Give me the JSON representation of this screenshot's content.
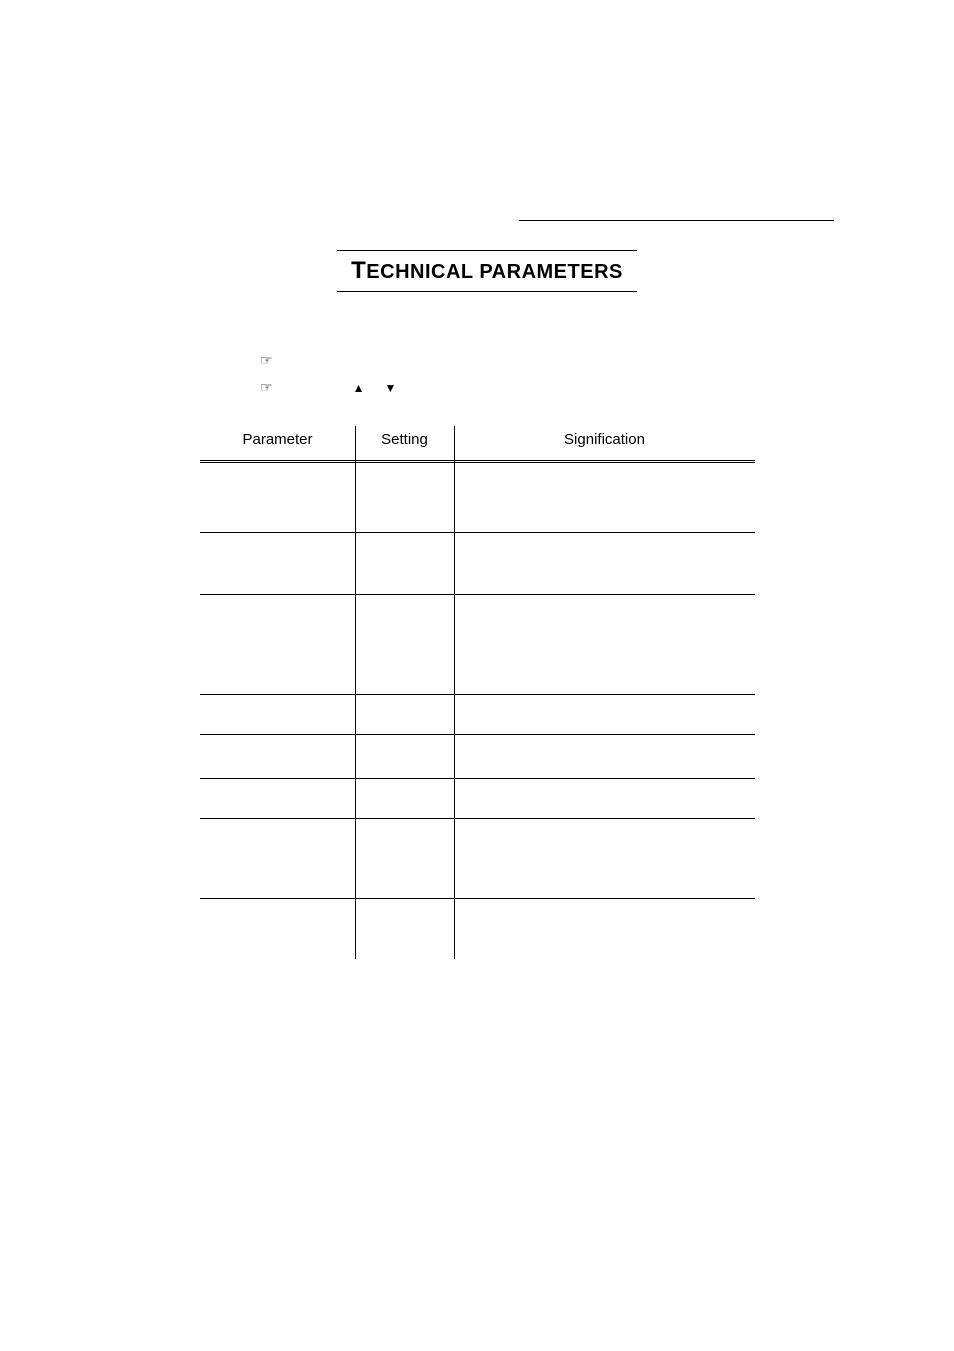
{
  "title": {
    "first_letter": "T",
    "rest": "ECHNICAL PARAMETERS"
  },
  "table": {
    "headers": {
      "parameter": "Parameter",
      "setting": "Setting",
      "signification": "Signification"
    },
    "rows": [
      {
        "height_class": "h-70"
      },
      {
        "height_class": "h-62"
      },
      {
        "height_class": "h-100"
      },
      {
        "height_class": "h-40"
      },
      {
        "height_class": "h-44"
      },
      {
        "height_class": "h-40"
      },
      {
        "height_class": "h-80"
      },
      {
        "height_class": "h-60",
        "last": true
      }
    ]
  },
  "colors": {
    "text": "#000000",
    "background": "#ffffff",
    "border": "#000000"
  }
}
